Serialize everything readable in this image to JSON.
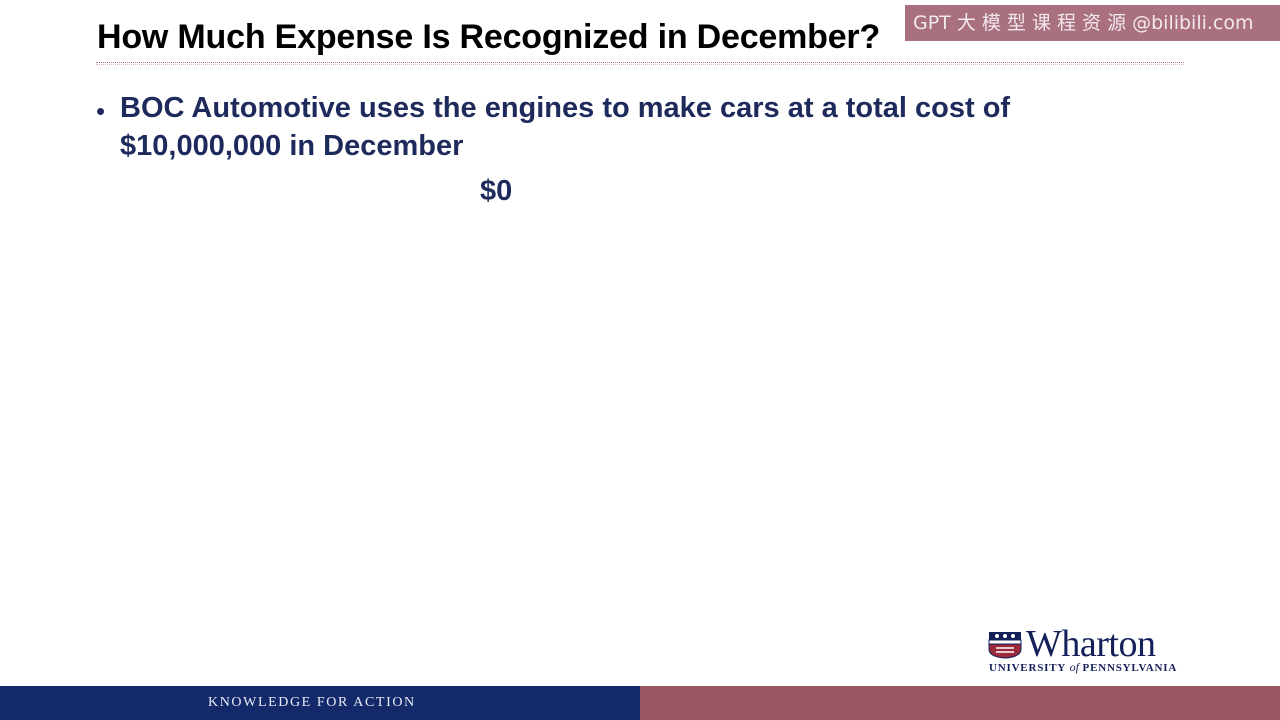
{
  "slide": {
    "title": "How Much Expense Is Recognized in December?",
    "watermark": "GPT 大 模 型 课 程 资 源 @bilibili.com",
    "bullets": [
      {
        "text": "BOC Automotive uses the engines to make cars at a total cost of $10,000,000 in December"
      }
    ],
    "answer": "$0"
  },
  "logo": {
    "name": "Wharton",
    "subtitle_part1": "University",
    "subtitle_of": "of",
    "subtitle_part2": "Pennsylvania",
    "icon": "penn-shield-icon"
  },
  "footer": {
    "tagline": "Knowledge for Action",
    "left_color": "#13296a",
    "right_color": "#9b5563"
  },
  "colors": {
    "title": "#000000",
    "body_text": "#1f2a5c",
    "brand_navy": "#14205a"
  }
}
